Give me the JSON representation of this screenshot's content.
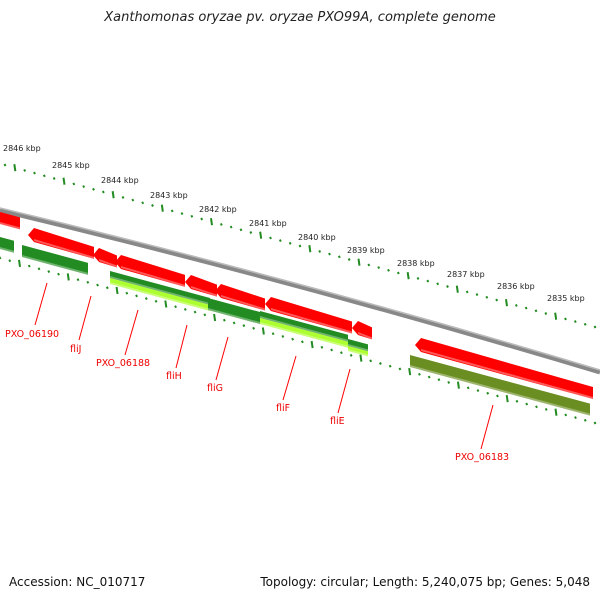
{
  "title": "Xanthomonas oryzae pv. oryzae PXO99A, complete genome",
  "accession": "Accession: NC_010717",
  "summary": "Topology: circular; Length: 5,240,075 bp; Genes: 5,048",
  "kbp_labels": [
    "2846 kbp",
    "2845 kbp",
    "2844 kbp",
    "2843 kbp",
    "2842 kbp",
    "2841 kbp",
    "2840 kbp",
    "2839 kbp",
    "2838 kbp",
    "2837 kbp",
    "2836 kbp",
    "2835 kbp"
  ],
  "genes": [
    "PXO_06190",
    "fliJ",
    "PXO_06188",
    "fliH",
    "fliG",
    "fliF",
    "fliE",
    "PXO_06183"
  ],
  "colors": {
    "cds": "#ff0000",
    "gene": "#228b22",
    "light": "#adff2f",
    "olive": "#6b8e23",
    "backbone": "#888888",
    "tick": "#228b22",
    "label": "#ff0000"
  }
}
